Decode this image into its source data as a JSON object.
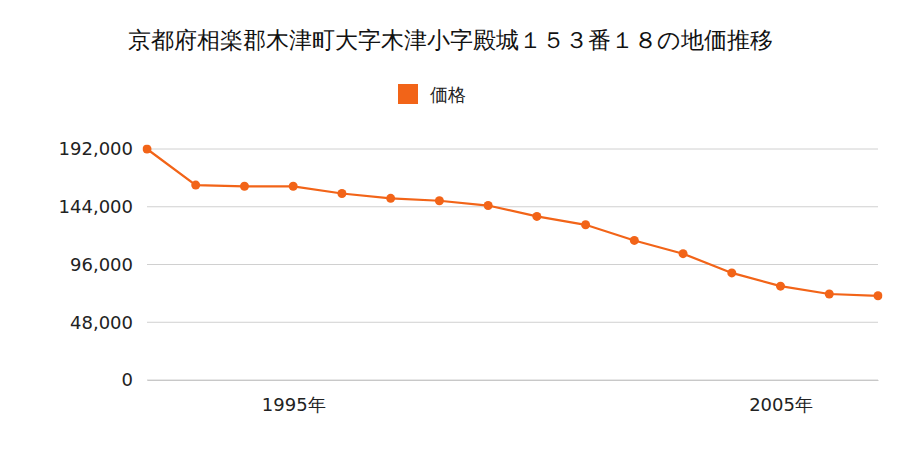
{
  "chart_data": {
    "type": "line",
    "title": "京都府相楽郡木津町大字木津小字殿城１５３番１８の地価推移",
    "x": [
      1992,
      1993,
      1994,
      1995,
      1996,
      1997,
      1998,
      1999,
      2000,
      2001,
      2002,
      2003,
      2004,
      2005,
      2006,
      2007
    ],
    "series": [
      {
        "name": "価格",
        "color": "#f26418",
        "marker": "circle",
        "values": [
          192000,
          162000,
          161000,
          161000,
          155000,
          151000,
          149000,
          145000,
          136000,
          129000,
          116000,
          105000,
          89000,
          78000,
          71500,
          70000
        ]
      }
    ],
    "xlim": [
      1992,
      2007
    ],
    "xticks": [
      {
        "value": 1995,
        "label": "1995年"
      },
      {
        "value": 2005,
        "label": "2005年"
      }
    ],
    "ylim": [
      0,
      192000
    ],
    "yticks": [
      {
        "value": 0,
        "label": "0"
      },
      {
        "value": 48000,
        "label": "48,000"
      },
      {
        "value": 96000,
        "label": "96,000"
      },
      {
        "value": 144000,
        "label": "144,000"
      },
      {
        "value": 192000,
        "label": "192,000"
      }
    ],
    "grid": true,
    "legend": "top"
  }
}
